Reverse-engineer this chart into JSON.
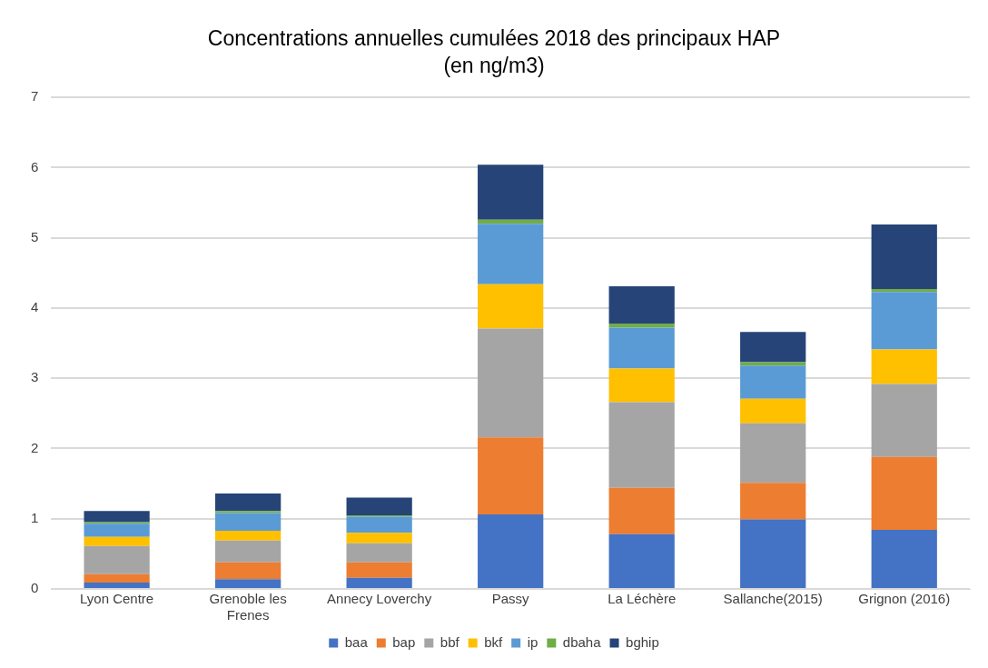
{
  "chart_data": {
    "type": "bar",
    "stacked": true,
    "title": "Concentrations annuelles cumulées 2018 des principaux HAP",
    "subtitle": "(en ng/m3)",
    "categories": [
      "Lyon Centre",
      "Grenoble les Frenes",
      "Annecy Loverchy",
      "Passy",
      "La Léchère",
      "Sallanche(2015)",
      "Grignon (2016)"
    ],
    "series": [
      {
        "name": "baa",
        "color": "#4472c4",
        "values": [
          0.09,
          0.14,
          0.16,
          1.06,
          0.78,
          0.99,
          0.84
        ]
      },
      {
        "name": "bap",
        "color": "#ed7d31",
        "values": [
          0.12,
          0.24,
          0.22,
          1.1,
          0.66,
          0.52,
          1.04
        ]
      },
      {
        "name": "bbf",
        "color": "#a5a5a5",
        "values": [
          0.4,
          0.31,
          0.27,
          1.55,
          1.22,
          0.85,
          1.04
        ]
      },
      {
        "name": "bkf",
        "color": "#ffc000",
        "values": [
          0.13,
          0.14,
          0.15,
          0.63,
          0.48,
          0.35,
          0.49
        ]
      },
      {
        "name": "ip",
        "color": "#5b9bd5",
        "values": [
          0.19,
          0.25,
          0.23,
          0.86,
          0.58,
          0.47,
          0.82
        ]
      },
      {
        "name": "dbaha",
        "color": "#70ad47",
        "values": [
          0.02,
          0.03,
          0.02,
          0.06,
          0.06,
          0.05,
          0.04
        ]
      },
      {
        "name": "bghip",
        "color": "#264478",
        "values": [
          0.16,
          0.25,
          0.25,
          0.78,
          0.53,
          0.43,
          0.92
        ]
      }
    ],
    "ylim": [
      0,
      7
    ],
    "yticks": [
      0,
      1,
      2,
      3,
      4,
      5,
      6,
      7
    ],
    "grid": "y",
    "legend": "bottom"
  }
}
